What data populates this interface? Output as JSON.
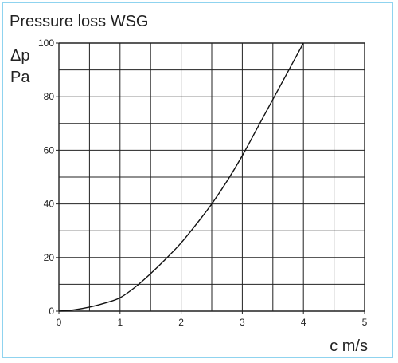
{
  "chart_data": {
    "type": "line",
    "title": "Pressure loss WSG",
    "ylabel_symbol": "Δp",
    "ylabel_unit": "Pa",
    "xlabel": "c m/s",
    "xlim": [
      0,
      5
    ],
    "ylim": [
      0,
      100
    ],
    "x_ticks": [
      0,
      1,
      2,
      3,
      4,
      5
    ],
    "x_tick_labels": [
      "0",
      "1",
      "2",
      "3",
      "4",
      "5"
    ],
    "y_ticks": [
      0,
      20,
      40,
      60,
      80,
      100
    ],
    "y_tick_labels": [
      "0",
      "20",
      "40",
      "60",
      "80",
      "100"
    ],
    "x_minor_step": 0.5,
    "y_minor_step": 10,
    "grid": true,
    "line_color": "#111111",
    "grid_color": "#222222",
    "frame_color": "#8fd3ef",
    "series": [
      {
        "x": [
          0,
          0.25,
          0.5,
          0.75,
          1.0,
          1.25,
          1.5,
          1.75,
          2.0,
          2.25,
          2.5,
          2.75,
          3.0,
          3.25,
          3.5,
          3.75,
          4.0
        ],
        "y": [
          0,
          0.5,
          1.5,
          3.0,
          5.0,
          9.0,
          14.0,
          19.5,
          25.5,
          32.5,
          40.0,
          48.5,
          58.0,
          68.5,
          79.0,
          89.5,
          100.0
        ]
      }
    ]
  }
}
